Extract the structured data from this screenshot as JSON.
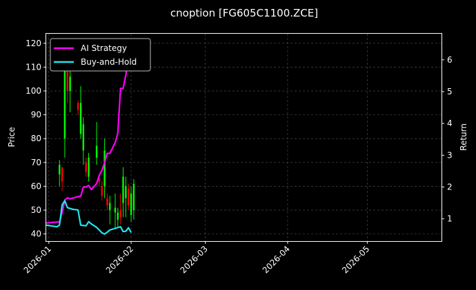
{
  "chart_data": {
    "type": "candlestick+line",
    "title": "cnoption [FG605C1100.ZCE]",
    "ylabel_left": "Price",
    "ylabel_right": "Return",
    "ylim_left": [
      37,
      124
    ],
    "ylim_right": [
      0.3,
      6.82
    ],
    "xlim": [
      "2025-12-31",
      "2026-05-29"
    ],
    "yticks_left": [
      40,
      50,
      60,
      70,
      80,
      90,
      100,
      110,
      120
    ],
    "yticks_right": [
      1,
      2,
      3,
      4,
      5,
      6
    ],
    "xticks": [
      "2026-01",
      "2026-02",
      "2026-03",
      "2026-04",
      "2026-05"
    ],
    "legend_position": "upper-left",
    "grid": true,
    "colors": {
      "up": "#00ff00",
      "down": "#ff0000",
      "ai": "#ff00ff",
      "bh": "#22e5f0",
      "grid": "#555555"
    },
    "candles": [
      {
        "date": "2026-01-05",
        "open": 65,
        "high": 71,
        "low": 60,
        "close": 69
      },
      {
        "date": "2026-01-06",
        "open": 68,
        "high": 68,
        "low": 58,
        "close": 62
      },
      {
        "date": "2026-01-07",
        "open": 80,
        "high": 120,
        "low": 72,
        "close": 112
      },
      {
        "date": "2026-01-08",
        "open": 115,
        "high": 120,
        "low": 95,
        "close": 100
      },
      {
        "date": "2026-01-09",
        "open": 100,
        "high": 112,
        "low": 91,
        "close": 106
      },
      {
        "date": "2026-01-12",
        "open": 95,
        "high": 96,
        "low": 90,
        "close": 92
      },
      {
        "date": "2026-01-13",
        "open": 82,
        "high": 102,
        "low": 80,
        "close": 95
      },
      {
        "date": "2026-01-14",
        "open": 75,
        "high": 89,
        "low": 69,
        "close": 86
      },
      {
        "date": "2026-01-15",
        "open": 70,
        "high": 72,
        "low": 64,
        "close": 66
      },
      {
        "date": "2026-01-16",
        "open": 64,
        "high": 74,
        "low": 62,
        "close": 72
      },
      {
        "date": "2026-01-19",
        "open": 72,
        "high": 87,
        "low": 69,
        "close": 77
      },
      {
        "date": "2026-01-20",
        "open": 63,
        "high": 64,
        "low": 60,
        "close": 62
      },
      {
        "date": "2026-01-21",
        "open": 60,
        "high": 62,
        "low": 54,
        "close": 56
      },
      {
        "date": "2026-01-22",
        "open": 60,
        "high": 80,
        "low": 55,
        "close": 75
      },
      {
        "date": "2026-01-23",
        "open": 55,
        "high": 57,
        "low": 50,
        "close": 52
      },
      {
        "date": "2026-01-24",
        "open": 50,
        "high": 56,
        "low": 44,
        "close": 53
      },
      {
        "date": "2026-01-26",
        "open": 49,
        "high": 57,
        "low": 42,
        "close": 51
      },
      {
        "date": "2026-01-27",
        "open": 46,
        "high": 51,
        "low": 43,
        "close": 49
      },
      {
        "date": "2026-01-28",
        "open": 50,
        "high": 57,
        "low": 44,
        "close": 47
      },
      {
        "date": "2026-01-29",
        "open": 53,
        "high": 68,
        "low": 47,
        "close": 64
      },
      {
        "date": "2026-01-30",
        "open": 55,
        "high": 64,
        "low": 47,
        "close": 60
      },
      {
        "date": "2026-01-31",
        "open": 59,
        "high": 61,
        "low": 50,
        "close": 52
      },
      {
        "date": "2026-02-01",
        "open": 48,
        "high": 60,
        "low": 45,
        "close": 57
      },
      {
        "date": "2026-02-02",
        "open": 50,
        "high": 63,
        "low": 46,
        "close": 61
      }
    ],
    "series": [
      {
        "name": "AI Strategy",
        "points": [
          [
            "2025-12-31",
            0.87
          ],
          [
            "2026-01-04",
            0.9
          ],
          [
            "2026-01-05",
            0.9
          ],
          [
            "2026-01-06",
            1.2
          ],
          [
            "2026-01-07",
            1.59
          ],
          [
            "2026-01-08",
            1.66
          ],
          [
            "2026-01-09",
            1.63
          ],
          [
            "2026-01-10",
            1.65
          ],
          [
            "2026-01-12",
            1.7
          ],
          [
            "2026-01-13",
            1.71
          ],
          [
            "2026-01-14",
            2.0
          ],
          [
            "2026-01-15",
            2.0
          ],
          [
            "2026-01-16",
            2.05
          ],
          [
            "2026-01-17",
            1.92
          ],
          [
            "2026-01-19",
            2.11
          ],
          [
            "2026-01-20",
            2.37
          ],
          [
            "2026-01-21",
            2.53
          ],
          [
            "2026-01-22",
            2.76
          ],
          [
            "2026-01-23",
            3.06
          ],
          [
            "2026-01-24",
            3.06
          ],
          [
            "2026-01-26",
            3.4
          ],
          [
            "2026-01-27",
            3.69
          ],
          [
            "2026-01-28",
            5.1
          ],
          [
            "2026-01-29",
            5.1
          ],
          [
            "2026-01-30",
            5.52
          ],
          [
            "2026-01-31",
            6.06
          ]
        ]
      },
      {
        "name": "Buy-and-Hold",
        "points": [
          [
            "2025-12-31",
            0.8
          ],
          [
            "2026-01-04",
            0.75
          ],
          [
            "2026-01-05",
            0.8
          ],
          [
            "2026-01-06",
            1.44
          ],
          [
            "2026-01-07",
            1.57
          ],
          [
            "2026-01-08",
            1.35
          ],
          [
            "2026-01-10",
            1.3
          ],
          [
            "2026-01-12",
            1.28
          ],
          [
            "2026-01-13",
            0.8
          ],
          [
            "2026-01-15",
            0.78
          ],
          [
            "2026-01-16",
            0.91
          ],
          [
            "2026-01-17",
            0.84
          ],
          [
            "2026-01-19",
            0.73
          ],
          [
            "2026-01-21",
            0.56
          ],
          [
            "2026-01-22",
            0.52
          ],
          [
            "2026-01-23",
            0.58
          ],
          [
            "2026-01-24",
            0.65
          ],
          [
            "2026-01-26",
            0.7
          ],
          [
            "2026-01-28",
            0.75
          ],
          [
            "2026-01-29",
            0.6
          ],
          [
            "2026-01-30",
            0.61
          ],
          [
            "2026-01-31",
            0.72
          ],
          [
            "2026-02-01",
            0.57
          ]
        ]
      }
    ]
  }
}
